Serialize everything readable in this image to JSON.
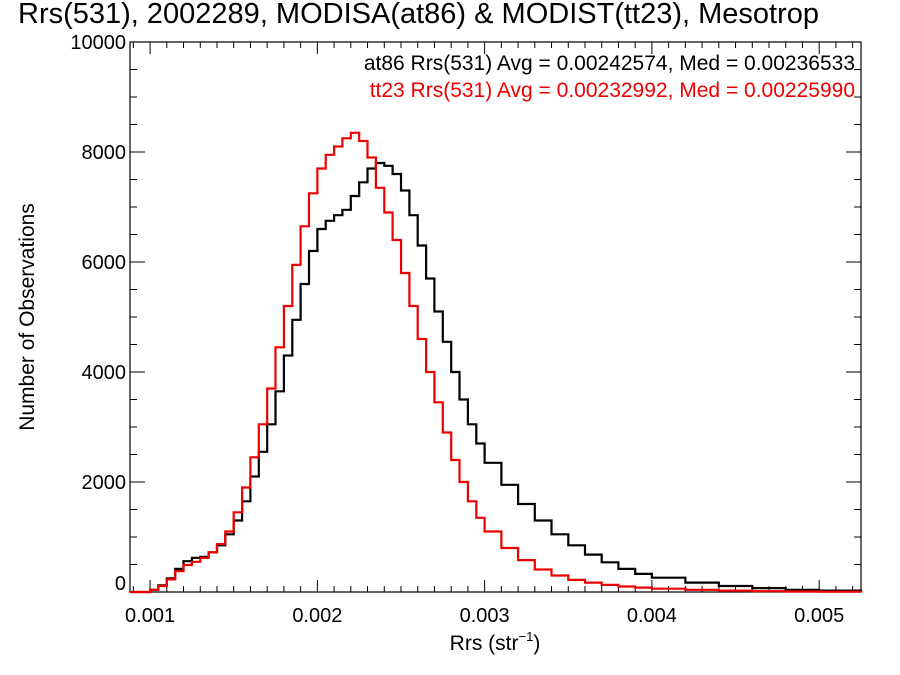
{
  "chart_data": {
    "type": "line",
    "title": "Rrs(531), 2002289, MODISA(at86) & MODIST(tt23), Mesotrop",
    "xlabel": "Rrs (str",
    "xlabel_sup": "−1",
    "xlabel_close": ")",
    "ylabel": "Number of Observations",
    "xlim": [
      0.00088,
      0.00525
    ],
    "ylim": [
      0,
      10000
    ],
    "x_ticks": [
      {
        "value": 0.001,
        "label": "0.001"
      },
      {
        "value": 0.002,
        "label": "0.002"
      },
      {
        "value": 0.003,
        "label": "0.003"
      },
      {
        "value": 0.004,
        "label": "0.004"
      },
      {
        "value": 0.005,
        "label": "0.005"
      }
    ],
    "y_ticks": [
      {
        "value": 0,
        "label": "0"
      },
      {
        "value": 2000,
        "label": "2000"
      },
      {
        "value": 4000,
        "label": "4000"
      },
      {
        "value": 6000,
        "label": "6000"
      },
      {
        "value": 8000,
        "label": "8000"
      },
      {
        "value": 10000,
        "label": "10000"
      }
    ],
    "legend": [
      "at86 Rrs(531) Avg = 0.00242574, Med = 0.00236533",
      "tt23 Rrs(531) Avg = 0.00232992, Med = 0.00225990"
    ],
    "legend_position": "top-right",
    "grid": false,
    "series": [
      {
        "name": "at86",
        "color": "#000000",
        "x": [
          0.00088,
          0.001,
          0.00105,
          0.0011,
          0.00115,
          0.0012,
          0.00125,
          0.0013,
          0.00135,
          0.0014,
          0.00145,
          0.0015,
          0.00155,
          0.0016,
          0.00165,
          0.0017,
          0.00175,
          0.0018,
          0.00185,
          0.0019,
          0.00195,
          0.002,
          0.00205,
          0.0021,
          0.00215,
          0.0022,
          0.00225,
          0.0023,
          0.00235,
          0.0024,
          0.00245,
          0.0025,
          0.00255,
          0.0026,
          0.00265,
          0.0027,
          0.00275,
          0.0028,
          0.00285,
          0.0029,
          0.00295,
          0.003,
          0.0031,
          0.0032,
          0.0033,
          0.0034,
          0.0035,
          0.0036,
          0.0037,
          0.0038,
          0.0039,
          0.004,
          0.0042,
          0.0044,
          0.0046,
          0.0048,
          0.005,
          0.00525
        ],
        "y": [
          0,
          40,
          120,
          250,
          420,
          560,
          620,
          640,
          720,
          850,
          1050,
          1300,
          1650,
          2100,
          2550,
          3050,
          3650,
          4300,
          4950,
          5600,
          6200,
          6600,
          6750,
          6850,
          6950,
          7200,
          7450,
          7700,
          7800,
          7750,
          7600,
          7300,
          6850,
          6300,
          5700,
          5100,
          4550,
          4000,
          3500,
          3050,
          2700,
          2350,
          1950,
          1600,
          1300,
          1050,
          850,
          680,
          540,
          420,
          330,
          260,
          170,
          110,
          70,
          40,
          25,
          0
        ]
      },
      {
        "name": "tt23",
        "color": "#ee0000",
        "x": [
          0.00088,
          0.001,
          0.00105,
          0.0011,
          0.00115,
          0.0012,
          0.00125,
          0.0013,
          0.00135,
          0.0014,
          0.00145,
          0.0015,
          0.00155,
          0.0016,
          0.00165,
          0.0017,
          0.00175,
          0.0018,
          0.00185,
          0.0019,
          0.00195,
          0.002,
          0.00205,
          0.0021,
          0.00215,
          0.0022,
          0.00225,
          0.0023,
          0.00235,
          0.0024,
          0.00245,
          0.0025,
          0.00255,
          0.0026,
          0.00265,
          0.0027,
          0.00275,
          0.0028,
          0.00285,
          0.0029,
          0.00295,
          0.003,
          0.0031,
          0.0032,
          0.0033,
          0.0034,
          0.0035,
          0.0036,
          0.0037,
          0.0038,
          0.0039,
          0.004,
          0.0042,
          0.0044,
          0.0046,
          0.0048,
          0.005,
          0.00525
        ],
        "y": [
          0,
          40,
          110,
          230,
          380,
          490,
          550,
          620,
          720,
          870,
          1100,
          1450,
          1900,
          2450,
          3050,
          3700,
          4450,
          5200,
          5950,
          6650,
          7250,
          7700,
          7950,
          8100,
          8250,
          8350,
          8200,
          7900,
          7350,
          6900,
          6400,
          5800,
          5200,
          4600,
          4000,
          3450,
          2900,
          2400,
          2000,
          1650,
          1350,
          1100,
          800,
          580,
          410,
          300,
          220,
          170,
          130,
          100,
          80,
          60,
          40,
          25,
          15,
          10,
          5,
          0
        ]
      }
    ]
  }
}
